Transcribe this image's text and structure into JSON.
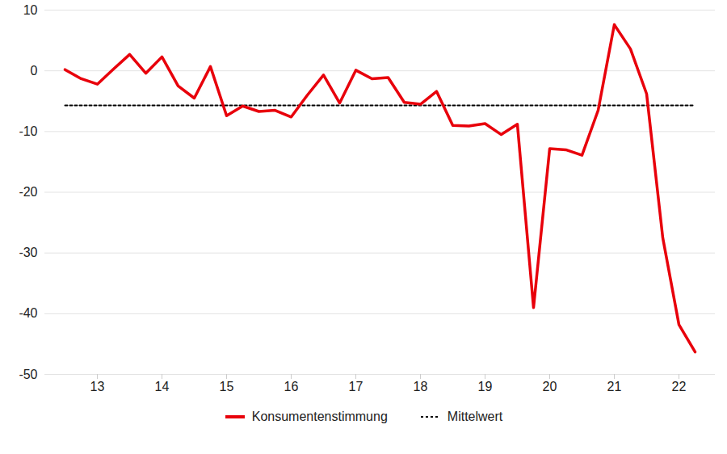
{
  "chart_data": {
    "type": "line",
    "categories": [
      null,
      null,
      "13",
      null,
      null,
      null,
      "14",
      null,
      null,
      null,
      "15",
      null,
      null,
      null,
      "16",
      null,
      null,
      null,
      "17",
      null,
      null,
      null,
      "18",
      null,
      null,
      null,
      "19",
      null,
      null,
      null,
      "20",
      null,
      null,
      null,
      "21",
      null,
      null,
      null,
      "22",
      null
    ],
    "series": [
      {
        "name": "Konsumentenstimmung",
        "color": "#e8000b",
        "line_style": "solid",
        "values": [
          0.2,
          -1.3,
          -2.2,
          0.3,
          2.7,
          -0.4,
          2.3,
          -2.5,
          -4.5,
          0.7,
          -7.4,
          -5.8,
          -6.7,
          -6.5,
          -7.6,
          -4.0,
          -0.7,
          -5.3,
          0.1,
          -1.3,
          -1.1,
          -5.2,
          -5.5,
          -3.4,
          -9.0,
          -9.1,
          -8.7,
          -10.5,
          -8.8,
          -39.0,
          -12.8,
          -13.0,
          -13.9,
          -6.5,
          7.6,
          3.6,
          -3.8,
          -27.5,
          -41.8,
          -46.3
        ]
      },
      {
        "name": "Mittelwert",
        "color": "#000000",
        "line_style": "dotted",
        "values": [
          -5.7,
          -5.7,
          -5.7,
          -5.7,
          -5.7,
          -5.7,
          -5.7,
          -5.7,
          -5.7,
          -5.7,
          -5.7,
          -5.7,
          -5.7,
          -5.7,
          -5.7,
          -5.7,
          -5.7,
          -5.7,
          -5.7,
          -5.7,
          -5.7,
          -5.7,
          -5.7,
          -5.7,
          -5.7,
          -5.7,
          -5.7,
          -5.7,
          -5.7,
          -5.7,
          -5.7,
          -5.7,
          -5.7,
          -5.7,
          -5.7,
          -5.7,
          -5.7,
          -5.7,
          -5.7,
          -5.7
        ]
      }
    ],
    "ylim": [
      -50,
      10
    ],
    "yticks": [
      -50,
      -40,
      -30,
      -20,
      -10,
      0,
      10
    ],
    "grid": true,
    "legend": "bottom"
  }
}
